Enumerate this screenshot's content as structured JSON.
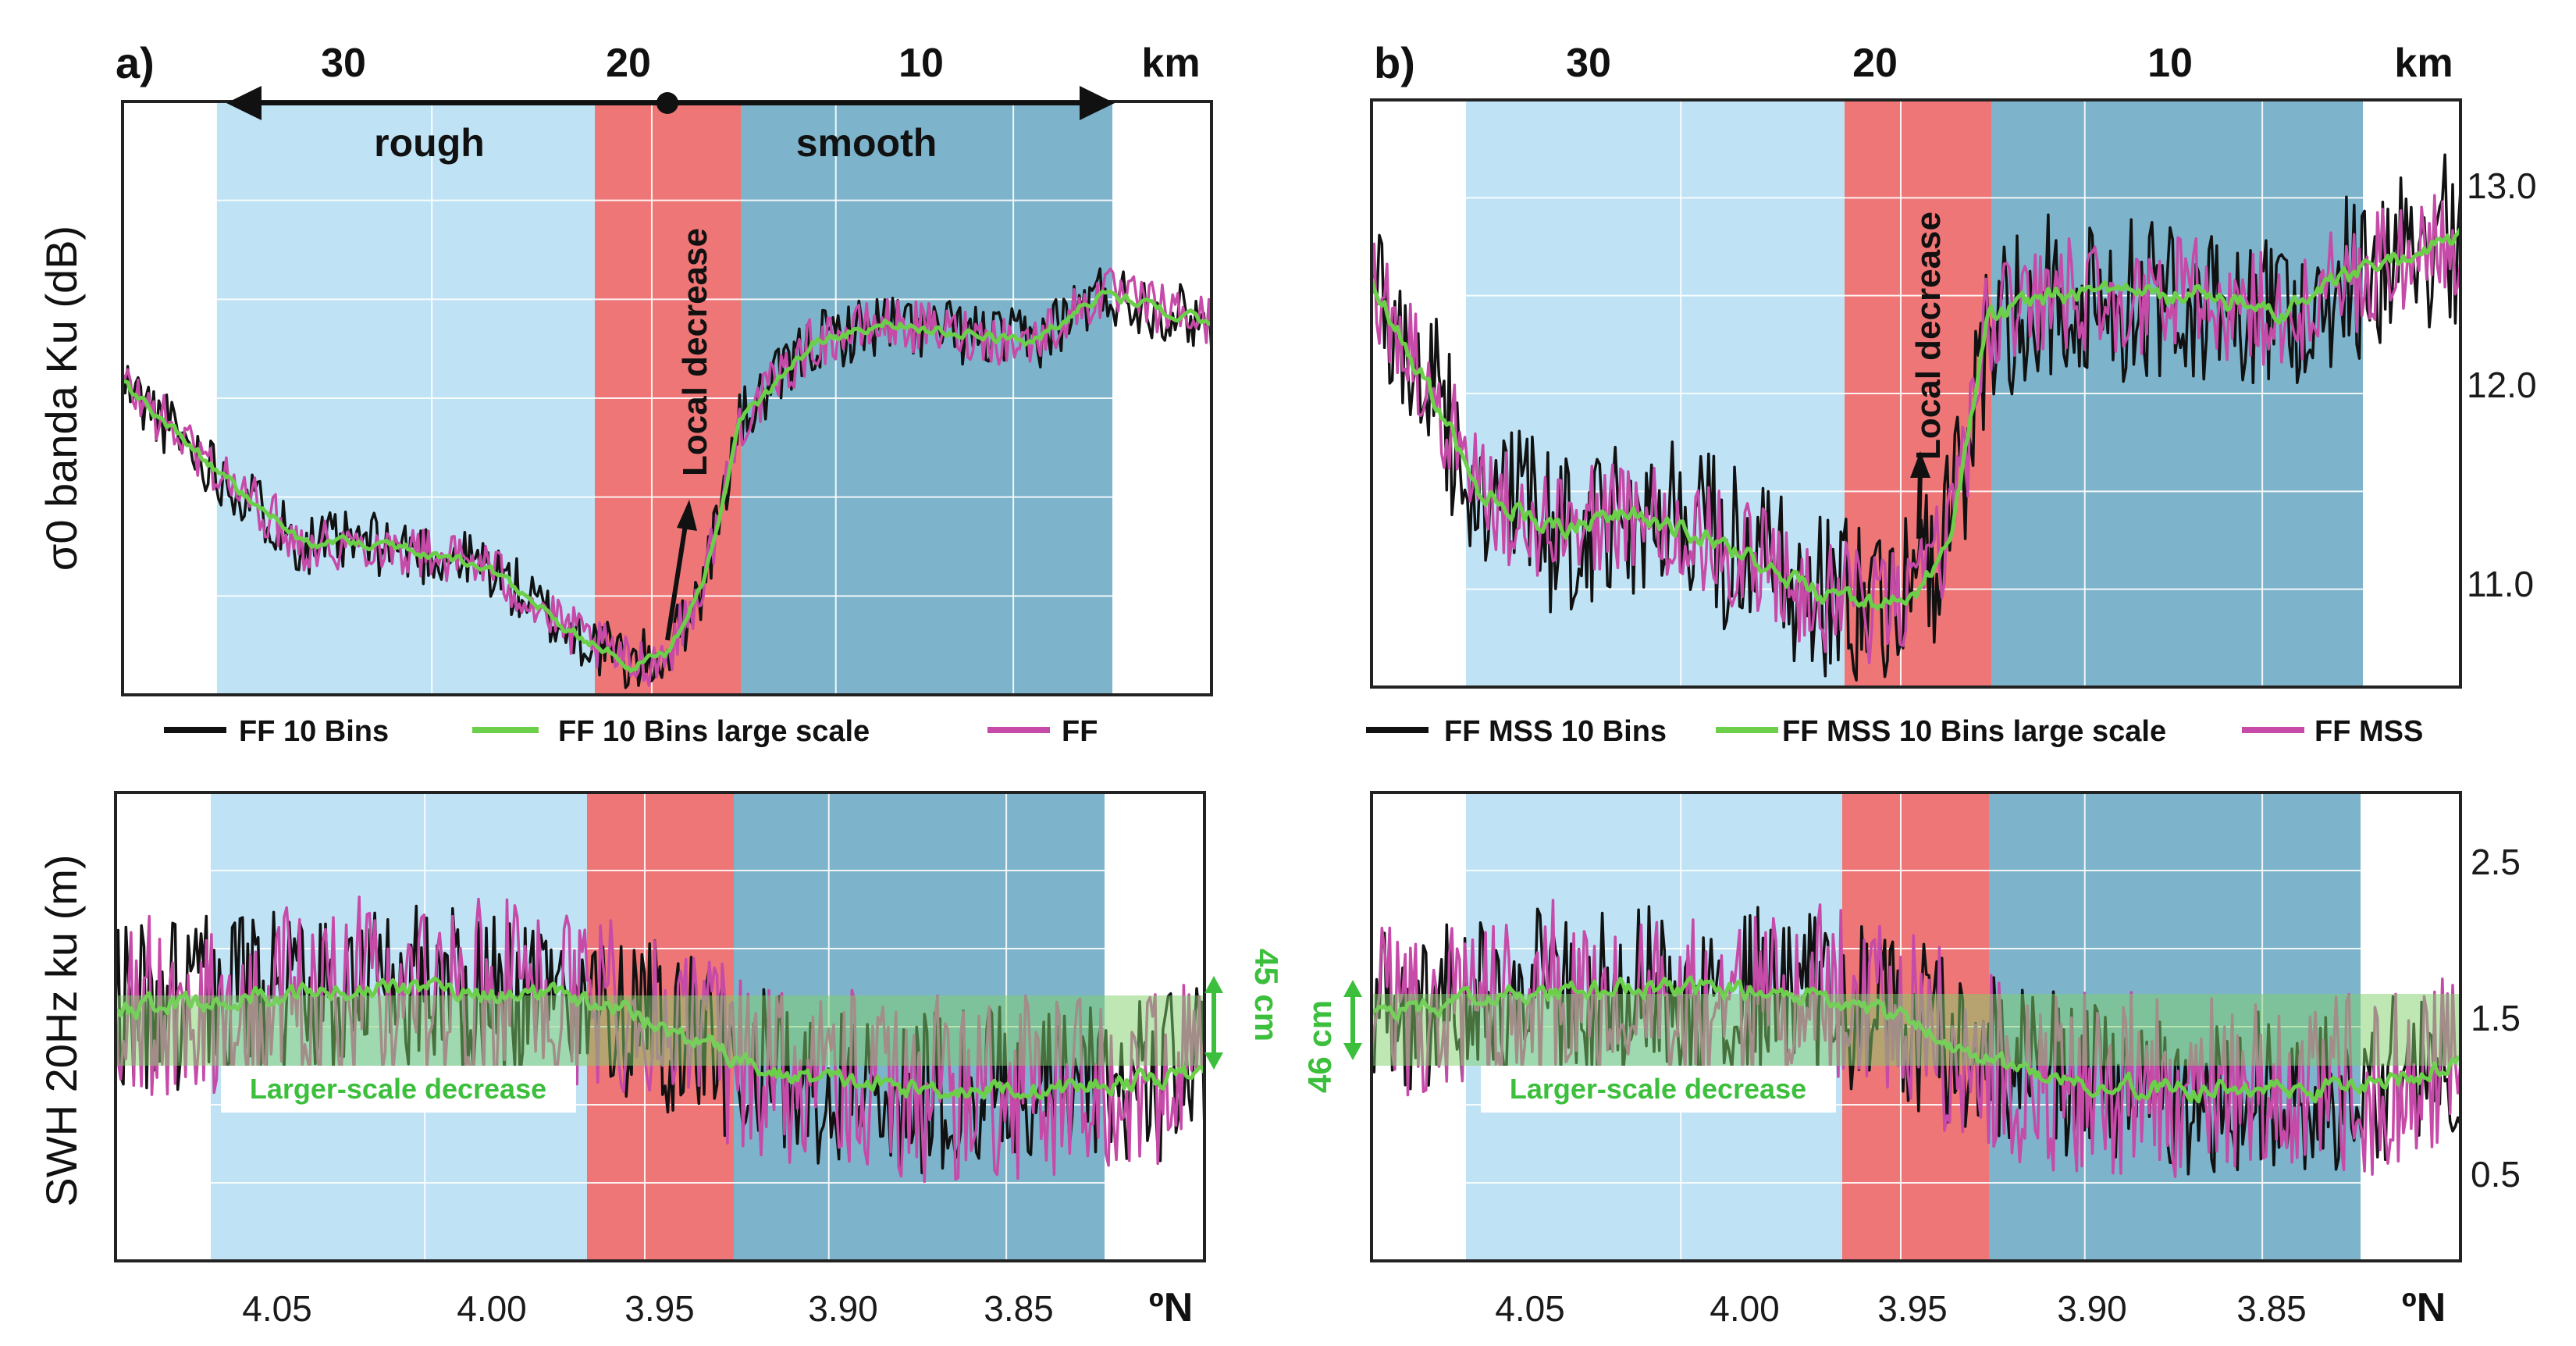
{
  "colors": {
    "rough": "#bfe3f5",
    "transition": "#ef7676",
    "smooth": "#7db4cb",
    "ff10": "#111111",
    "large_scale": "#6ccf4a",
    "ff": "#c64aa8",
    "swh_band": "#7ed06a",
    "label_green": "#3cbf3c"
  },
  "panels": [
    {
      "id": "a",
      "panel_label": "a)",
      "km_axis": {
        "unit": "km",
        "ticks": [
          "30",
          "20",
          "10"
        ]
      },
      "lat_axis": {
        "unit": "ºN",
        "ticks": [
          "4.05",
          "4.00",
          "3.95",
          "3.90",
          "3.85"
        ]
      },
      "top_ylabel": "σ0 banda Ku (dB)",
      "bottom_ylabel": "SWH 20Hz ku (m)",
      "regions": {
        "rough": "rough",
        "smooth": "smooth"
      },
      "annotation": "Local decrease",
      "legend": [
        "FF 10 Bins",
        "FF 10 Bins large scale",
        "FF"
      ],
      "larger_scale_label": "Larger-scale decrease",
      "band_label": "45 cm"
    },
    {
      "id": "b",
      "panel_label": "b)",
      "km_axis": {
        "unit": "km",
        "ticks": [
          "30",
          "20",
          "10"
        ]
      },
      "lat_axis": {
        "unit": "ºN",
        "ticks": [
          "4.05",
          "4.00",
          "3.95",
          "3.90",
          "3.85"
        ]
      },
      "top_yticks": [
        "13.0",
        "12.0",
        "11.0"
      ],
      "bottom_yticks": [
        "2.5",
        "1.5",
        "0.5"
      ],
      "annotation": "Local decrease",
      "legend": [
        "FF MSS 10 Bins",
        "FF MSS 10 Bins large scale",
        "FF MSS"
      ],
      "larger_scale_label": "Larger-scale decrease",
      "band_label": "46 cm"
    }
  ],
  "chart_data": [
    {
      "panel": "a",
      "plot": "sigma0",
      "type": "line",
      "title": "",
      "xlabel": "ºN",
      "ylabel": "σ0 banda Ku (dB)",
      "xlim": [
        4.1,
        3.8
      ],
      "ylim": [
        10.55,
        13.5
      ],
      "x_key": [
        4.1,
        4.07,
        4.05,
        4.03,
        4.0,
        3.98,
        3.96,
        3.95,
        3.94,
        3.93,
        3.91,
        3.89,
        3.87,
        3.85,
        3.83,
        3.8
      ],
      "series": [
        {
          "name": "FF 10 Bins",
          "values": [
            12.1,
            11.6,
            11.3,
            11.3,
            11.2,
            10.9,
            10.7,
            10.75,
            11.1,
            11.9,
            12.3,
            12.4,
            12.35,
            12.3,
            12.55,
            12.4
          ],
          "noise": 0.16
        },
        {
          "name": "FF 10 Bins large scale",
          "values": [
            12.1,
            11.6,
            11.3,
            11.3,
            11.2,
            10.9,
            10.7,
            10.75,
            11.1,
            11.9,
            12.3,
            12.4,
            12.35,
            12.3,
            12.55,
            12.4
          ],
          "noise": 0.05
        },
        {
          "name": "FF",
          "values": [
            12.1,
            11.6,
            11.3,
            11.3,
            11.2,
            10.9,
            10.7,
            10.75,
            11.1,
            11.9,
            12.3,
            12.4,
            12.35,
            12.3,
            12.55,
            12.4
          ],
          "noise": 0.13
        }
      ]
    },
    {
      "panel": "a",
      "plot": "swh",
      "type": "line",
      "title": "",
      "xlabel": "ºN",
      "ylabel": "SWH 20Hz ku (m)",
      "xlim": [
        4.1,
        3.8
      ],
      "ylim": [
        0.0,
        3.0
      ],
      "x_key": [
        4.1,
        4.06,
        4.02,
        3.98,
        3.96,
        3.94,
        3.92,
        3.9,
        3.88,
        3.86,
        3.84,
        3.82,
        3.8
      ],
      "series": [
        {
          "name": "FF 10 Bins",
          "values": [
            1.6,
            1.7,
            1.75,
            1.7,
            1.6,
            1.4,
            1.2,
            1.15,
            1.1,
            1.1,
            1.1,
            1.15,
            1.2
          ],
          "noise": 0.55
        },
        {
          "name": "FF 10 Bins large scale",
          "values": [
            1.6,
            1.7,
            1.75,
            1.7,
            1.6,
            1.4,
            1.2,
            1.15,
            1.1,
            1.1,
            1.1,
            1.15,
            1.2
          ],
          "noise": 0.12
        },
        {
          "name": "FF",
          "values": [
            1.6,
            1.7,
            1.75,
            1.7,
            1.6,
            1.4,
            1.2,
            1.15,
            1.1,
            1.1,
            1.1,
            1.15,
            1.2
          ],
          "noise": 0.6
        }
      ],
      "band_range_m": [
        1.25,
        1.7
      ]
    },
    {
      "panel": "b",
      "plot": "sigma0",
      "type": "line",
      "title": "",
      "xlabel": "ºN",
      "ylabel": "",
      "xlim": [
        4.1,
        3.8
      ],
      "ylim": [
        10.5,
        13.5
      ],
      "yticks": [
        11.0,
        12.0,
        13.0
      ],
      "x_key": [
        4.1,
        4.07,
        4.05,
        4.03,
        4.0,
        3.98,
        3.96,
        3.95,
        3.94,
        3.93,
        3.91,
        3.89,
        3.87,
        3.85,
        3.83,
        3.8
      ],
      "series": [
        {
          "name": "FF MSS 10 Bins",
          "values": [
            12.6,
            11.5,
            11.3,
            11.4,
            11.2,
            11.0,
            10.9,
            10.95,
            11.3,
            12.4,
            12.5,
            12.5,
            12.5,
            12.4,
            12.6,
            12.8
          ],
          "noise": 0.45
        },
        {
          "name": "FF MSS 10 Bins large scale",
          "values": [
            12.6,
            11.5,
            11.3,
            11.4,
            11.2,
            11.0,
            10.9,
            10.95,
            11.3,
            12.4,
            12.5,
            12.5,
            12.5,
            12.4,
            12.6,
            12.8
          ],
          "noise": 0.1
        },
        {
          "name": "FF MSS",
          "values": [
            12.6,
            11.5,
            11.3,
            11.4,
            11.2,
            11.0,
            10.9,
            10.95,
            11.3,
            12.4,
            12.5,
            12.5,
            12.5,
            12.4,
            12.6,
            12.8
          ],
          "noise": 0.3
        }
      ]
    },
    {
      "panel": "b",
      "plot": "swh",
      "type": "line",
      "title": "",
      "xlabel": "ºN",
      "ylabel": "",
      "xlim": [
        4.1,
        3.8
      ],
      "ylim": [
        0.0,
        3.0
      ],
      "yticks": [
        0.5,
        1.5,
        2.5
      ],
      "x_key": [
        4.1,
        4.06,
        4.02,
        3.98,
        3.96,
        3.94,
        3.92,
        3.9,
        3.88,
        3.86,
        3.84,
        3.82,
        3.8
      ],
      "series": [
        {
          "name": "FF MSS 10 Bins",
          "values": [
            1.6,
            1.7,
            1.75,
            1.7,
            1.6,
            1.4,
            1.2,
            1.15,
            1.1,
            1.1,
            1.1,
            1.15,
            1.25
          ],
          "noise": 0.55
        },
        {
          "name": "FF MSS 10 Bins large scale",
          "values": [
            1.6,
            1.7,
            1.75,
            1.7,
            1.6,
            1.4,
            1.2,
            1.15,
            1.1,
            1.1,
            1.1,
            1.15,
            1.25
          ],
          "noise": 0.12
        },
        {
          "name": "FF MSS",
          "values": [
            1.6,
            1.7,
            1.75,
            1.7,
            1.6,
            1.4,
            1.2,
            1.15,
            1.1,
            1.1,
            1.1,
            1.15,
            1.25
          ],
          "noise": 0.6
        }
      ],
      "band_range_m": [
        1.25,
        1.71
      ]
    }
  ]
}
